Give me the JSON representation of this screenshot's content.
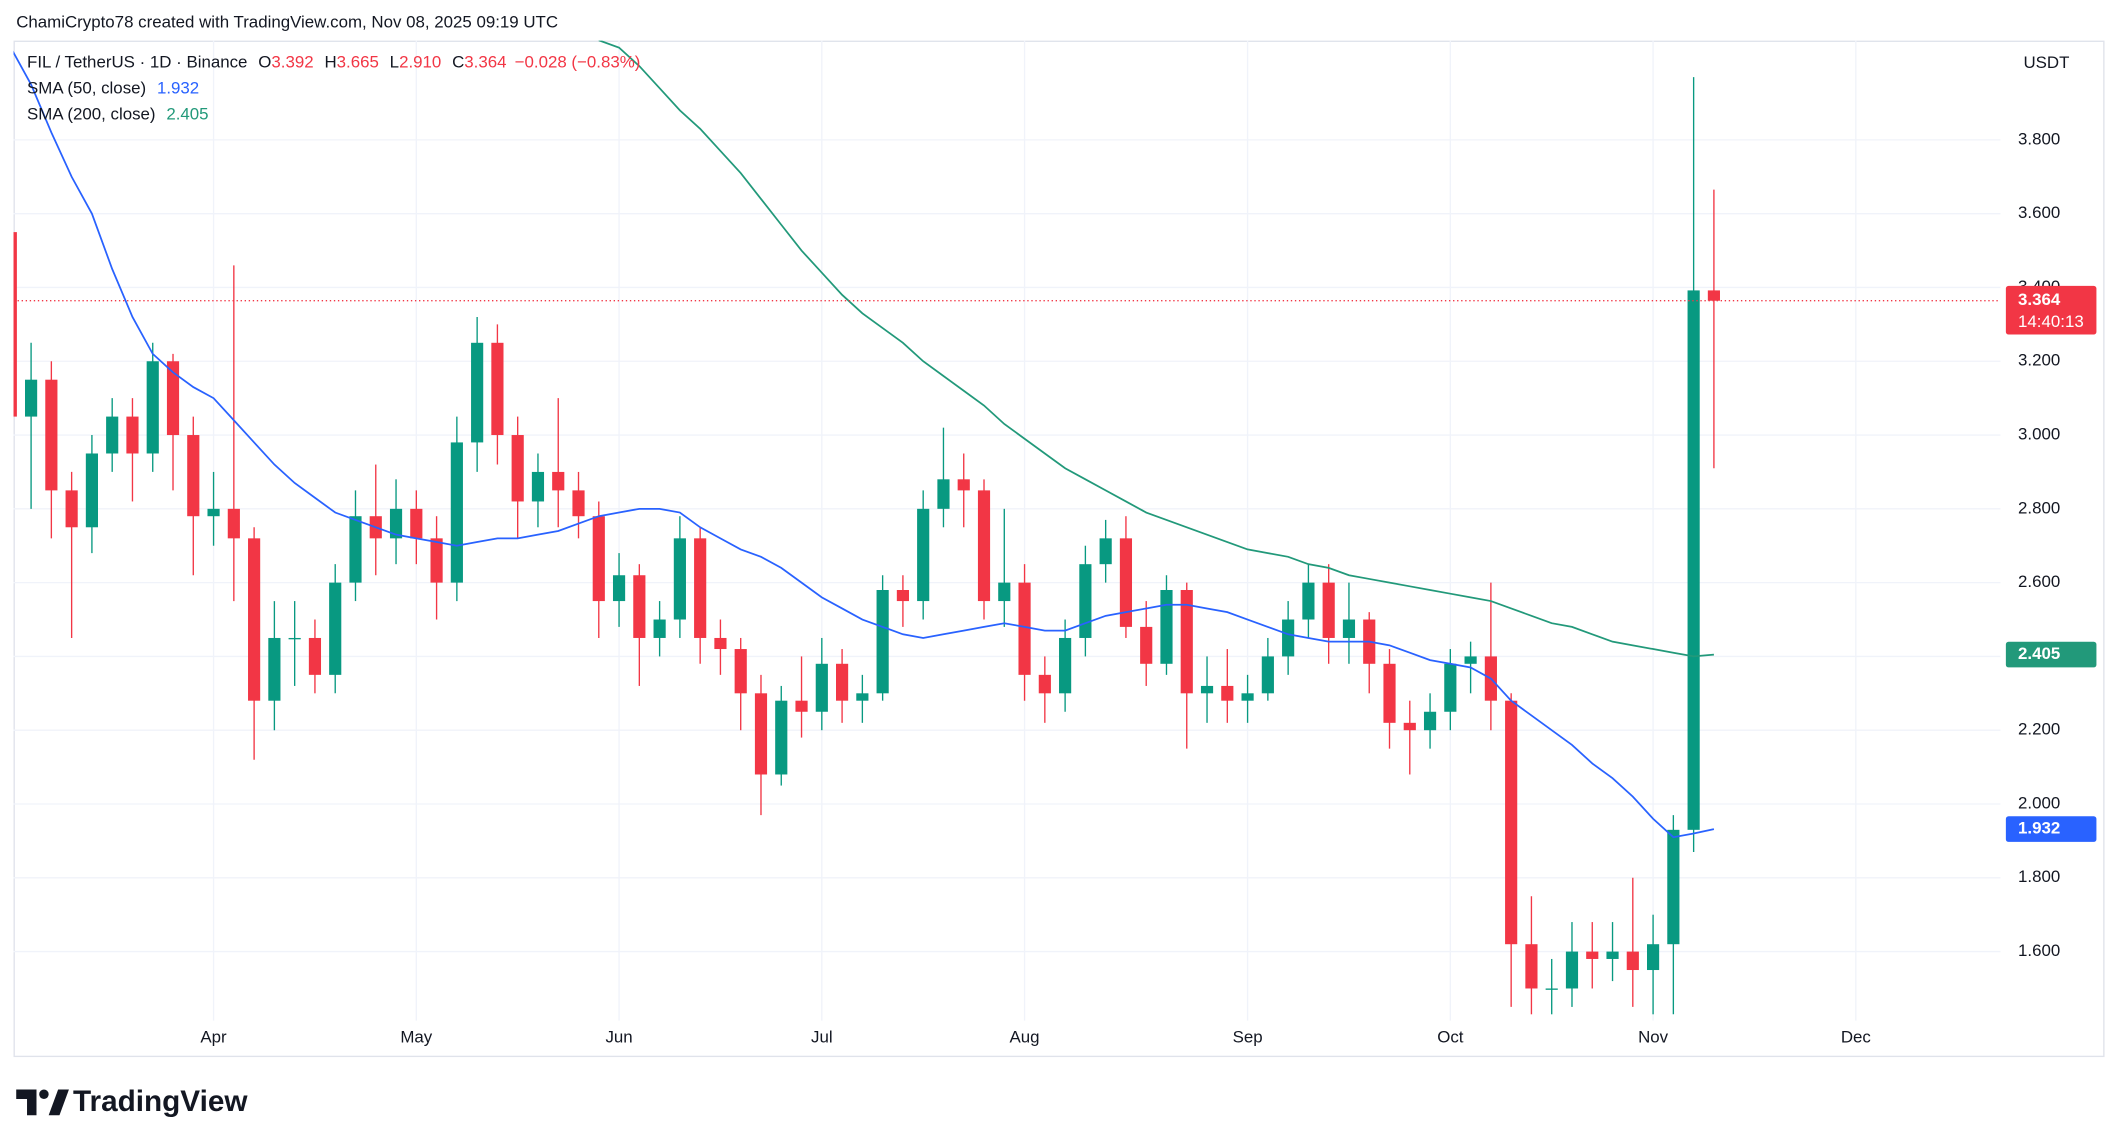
{
  "header": {
    "credit": "ChamiCrypto78 created with TradingView.com, Nov 08, 2025 09:19 UTC",
    "symbol": "FIL / TetherUS · 1D · Binance",
    "open_key": "O",
    "high_key": "H",
    "low_key": "L",
    "close_key": "C",
    "low_text": "2.910",
    "change": "−0.028 (−0.83%)",
    "currency": "USDT",
    "countdown": "14:40:13"
  },
  "footer": {
    "logo": "TradingView"
  },
  "chart_data": {
    "type": "candlestick",
    "up_color": "#089981",
    "down_color": "#f23645",
    "categories": [
      null,
      null,
      null,
      null,
      null,
      null,
      null,
      null,
      null,
      null,
      "Apr",
      null,
      null,
      null,
      null,
      null,
      null,
      null,
      null,
      null,
      "May",
      null,
      null,
      null,
      null,
      null,
      null,
      null,
      null,
      null,
      "Jun",
      null,
      null,
      null,
      null,
      null,
      null,
      null,
      null,
      null,
      "Jul",
      null,
      null,
      null,
      null,
      null,
      null,
      null,
      null,
      null,
      "Aug",
      null,
      null,
      null,
      null,
      null,
      null,
      null,
      null,
      null,
      null,
      "Sep",
      null,
      null,
      null,
      null,
      null,
      null,
      null,
      null,
      null,
      "Oct",
      null,
      null,
      null,
      null,
      null,
      null,
      null,
      null,
      null,
      "Nov",
      null,
      null,
      null,
      null,
      null,
      null,
      null,
      null,
      null,
      "Dec",
      null,
      null,
      null,
      null,
      null,
      null
    ],
    "open": [
      3.55,
      3.05,
      3.15,
      2.85,
      2.75,
      2.95,
      3.05,
      2.95,
      3.2,
      3.0,
      2.78,
      2.8,
      2.72,
      2.28,
      2.45,
      2.45,
      2.35,
      2.6,
      2.78,
      2.72,
      2.8,
      2.72,
      2.6,
      2.98,
      3.25,
      3.0,
      2.82,
      2.9,
      2.85,
      2.78,
      2.55,
      2.62,
      2.45,
      2.5,
      2.72,
      2.45,
      2.42,
      2.3,
      2.08,
      2.28,
      2.25,
      2.38,
      2.28,
      2.3,
      2.58,
      2.55,
      2.8,
      2.88,
      2.85,
      2.55,
      2.6,
      2.35,
      2.3,
      2.45,
      2.65,
      2.72,
      2.48,
      2.38,
      2.58,
      2.3,
      2.32,
      2.28,
      2.3,
      2.4,
      2.5,
      2.6,
      2.45,
      2.5,
      2.38,
      2.22,
      2.2,
      2.25,
      2.38,
      2.4,
      2.28,
      1.62,
      1.5,
      1.5,
      1.6,
      1.58,
      1.6,
      1.55,
      1.62,
      1.93,
      3.392,
      null,
      null,
      null,
      null,
      null,
      null,
      null,
      null,
      null,
      null,
      null,
      null,
      null
    ],
    "high": [
      3.6,
      3.25,
      3.2,
      2.9,
      3.0,
      3.1,
      3.1,
      3.25,
      3.22,
      3.05,
      2.9,
      3.46,
      2.75,
      2.55,
      2.55,
      2.5,
      2.65,
      2.85,
      2.92,
      2.88,
      2.85,
      2.78,
      3.05,
      3.32,
      3.3,
      3.05,
      2.95,
      3.1,
      2.9,
      2.82,
      2.68,
      2.65,
      2.55,
      2.78,
      2.75,
      2.5,
      2.45,
      2.35,
      2.32,
      2.4,
      2.45,
      2.42,
      2.35,
      2.62,
      2.62,
      2.85,
      3.02,
      2.95,
      2.88,
      2.8,
      2.65,
      2.4,
      2.5,
      2.7,
      2.77,
      2.78,
      2.55,
      2.62,
      2.6,
      2.4,
      2.42,
      2.35,
      2.45,
      2.55,
      2.65,
      2.65,
      2.6,
      2.52,
      2.42,
      2.28,
      2.3,
      2.42,
      2.44,
      2.6,
      2.3,
      1.75,
      1.58,
      1.68,
      1.68,
      1.68,
      1.8,
      1.7,
      1.97,
      3.97,
      3.665,
      null,
      null,
      null,
      null,
      null,
      null,
      null,
      null,
      null,
      null,
      null,
      null,
      null
    ],
    "low": [
      2.95,
      2.8,
      2.72,
      2.45,
      2.68,
      2.9,
      2.82,
      2.9,
      2.85,
      2.62,
      2.7,
      2.55,
      2.12,
      2.2,
      2.32,
      2.3,
      2.3,
      2.55,
      2.62,
      2.65,
      2.65,
      2.5,
      2.55,
      2.9,
      2.92,
      2.72,
      2.75,
      2.75,
      2.72,
      2.45,
      2.48,
      2.32,
      2.4,
      2.45,
      2.38,
      2.35,
      2.2,
      1.97,
      2.05,
      2.18,
      2.2,
      2.22,
      2.22,
      2.28,
      2.48,
      2.5,
      2.75,
      2.75,
      2.5,
      2.48,
      2.28,
      2.22,
      2.25,
      2.4,
      2.6,
      2.45,
      2.32,
      2.35,
      2.15,
      2.22,
      2.22,
      2.22,
      2.28,
      2.35,
      2.45,
      2.38,
      2.38,
      2.3,
      2.15,
      2.08,
      2.15,
      2.2,
      2.3,
      2.2,
      1.45,
      1.43,
      1.43,
      1.45,
      1.5,
      1.52,
      1.45,
      1.43,
      1.43,
      1.87,
      2.91,
      null,
      null,
      null,
      null,
      null,
      null,
      null,
      null,
      null,
      null,
      null,
      null,
      null
    ],
    "close": [
      3.05,
      3.15,
      2.85,
      2.75,
      2.95,
      3.05,
      2.95,
      3.2,
      3.0,
      2.78,
      2.8,
      2.72,
      2.28,
      2.45,
      2.45,
      2.35,
      2.6,
      2.78,
      2.72,
      2.8,
      2.72,
      2.6,
      2.98,
      3.25,
      3.0,
      2.82,
      2.9,
      2.85,
      2.78,
      2.55,
      2.62,
      2.45,
      2.5,
      2.72,
      2.45,
      2.42,
      2.3,
      2.08,
      2.28,
      2.25,
      2.38,
      2.28,
      2.3,
      2.58,
      2.55,
      2.8,
      2.88,
      2.85,
      2.55,
      2.6,
      2.35,
      2.3,
      2.45,
      2.65,
      2.72,
      2.48,
      2.38,
      2.58,
      2.3,
      2.32,
      2.28,
      2.3,
      2.4,
      2.5,
      2.6,
      2.45,
      2.5,
      2.38,
      2.22,
      2.2,
      2.25,
      2.38,
      2.4,
      2.28,
      1.62,
      1.5,
      1.5,
      1.6,
      1.58,
      1.6,
      1.55,
      1.62,
      1.93,
      3.392,
      3.364,
      null,
      null,
      null,
      null,
      null,
      null,
      null,
      null,
      null,
      null,
      null,
      null,
      null
    ],
    "series": [
      {
        "name": "SMA (50, close)",
        "color": "#2962ff",
        "values": [
          4.05,
          3.95,
          3.82,
          3.7,
          3.6,
          3.45,
          3.32,
          3.22,
          3.17,
          3.13,
          3.1,
          3.04,
          2.98,
          2.92,
          2.87,
          2.83,
          2.79,
          2.77,
          2.75,
          2.73,
          2.72,
          2.71,
          2.7,
          2.71,
          2.72,
          2.72,
          2.73,
          2.74,
          2.76,
          2.78,
          2.79,
          2.8,
          2.8,
          2.79,
          2.75,
          2.72,
          2.69,
          2.67,
          2.64,
          2.6,
          2.56,
          2.53,
          2.5,
          2.48,
          2.46,
          2.45,
          2.46,
          2.47,
          2.48,
          2.49,
          2.48,
          2.47,
          2.47,
          2.49,
          2.51,
          2.52,
          2.53,
          2.54,
          2.54,
          2.53,
          2.52,
          2.5,
          2.48,
          2.46,
          2.45,
          2.44,
          2.44,
          2.44,
          2.43,
          2.41,
          2.39,
          2.38,
          2.37,
          2.34,
          2.28,
          2.24,
          2.2,
          2.16,
          2.11,
          2.07,
          2.02,
          1.96,
          1.91,
          1.92,
          1.932,
          null,
          null,
          null,
          null,
          null,
          null,
          null,
          null,
          null,
          null,
          null,
          null,
          null
        ]
      },
      {
        "name": "SMA (200, close)",
        "color": "#22997a",
        "values": [
          null,
          null,
          null,
          null,
          null,
          null,
          null,
          null,
          null,
          null,
          null,
          null,
          null,
          null,
          null,
          null,
          null,
          null,
          null,
          null,
          null,
          null,
          null,
          null,
          null,
          null,
          null,
          null,
          null,
          4.07,
          4.05,
          4.0,
          3.94,
          3.88,
          3.83,
          3.77,
          3.71,
          3.64,
          3.57,
          3.5,
          3.44,
          3.38,
          3.33,
          3.29,
          3.25,
          3.2,
          3.16,
          3.12,
          3.08,
          3.03,
          2.99,
          2.95,
          2.91,
          2.88,
          2.85,
          2.82,
          2.79,
          2.77,
          2.75,
          2.73,
          2.71,
          2.69,
          2.68,
          2.67,
          2.65,
          2.64,
          2.62,
          2.61,
          2.6,
          2.59,
          2.58,
          2.57,
          2.56,
          2.55,
          2.53,
          2.51,
          2.49,
          2.48,
          2.46,
          2.44,
          2.43,
          2.42,
          2.41,
          2.4,
          2.405,
          null,
          null,
          null,
          null,
          null,
          null,
          null,
          null,
          null,
          null,
          null,
          null,
          null
        ]
      }
    ],
    "ylim": [
      1.413,
      4.069
    ],
    "yticks": [
      {
        "value": 1.6,
        "label": "1.600"
      },
      {
        "value": 1.8,
        "label": "1.800"
      },
      {
        "value": 2.0,
        "label": "2.000"
      },
      {
        "value": 2.2,
        "label": "2.200"
      },
      {
        "value": 2.4,
        "label": "2.400"
      },
      {
        "value": 2.6,
        "label": "2.600"
      },
      {
        "value": 2.8,
        "label": "2.800"
      },
      {
        "value": 3.0,
        "label": "3.000"
      },
      {
        "value": 3.2,
        "label": "3.200"
      },
      {
        "value": 3.4,
        "label": "3.400"
      },
      {
        "value": 3.6,
        "label": "3.600"
      },
      {
        "value": 3.8,
        "label": "3.800"
      }
    ],
    "grid": true,
    "last_price_line": true
  }
}
